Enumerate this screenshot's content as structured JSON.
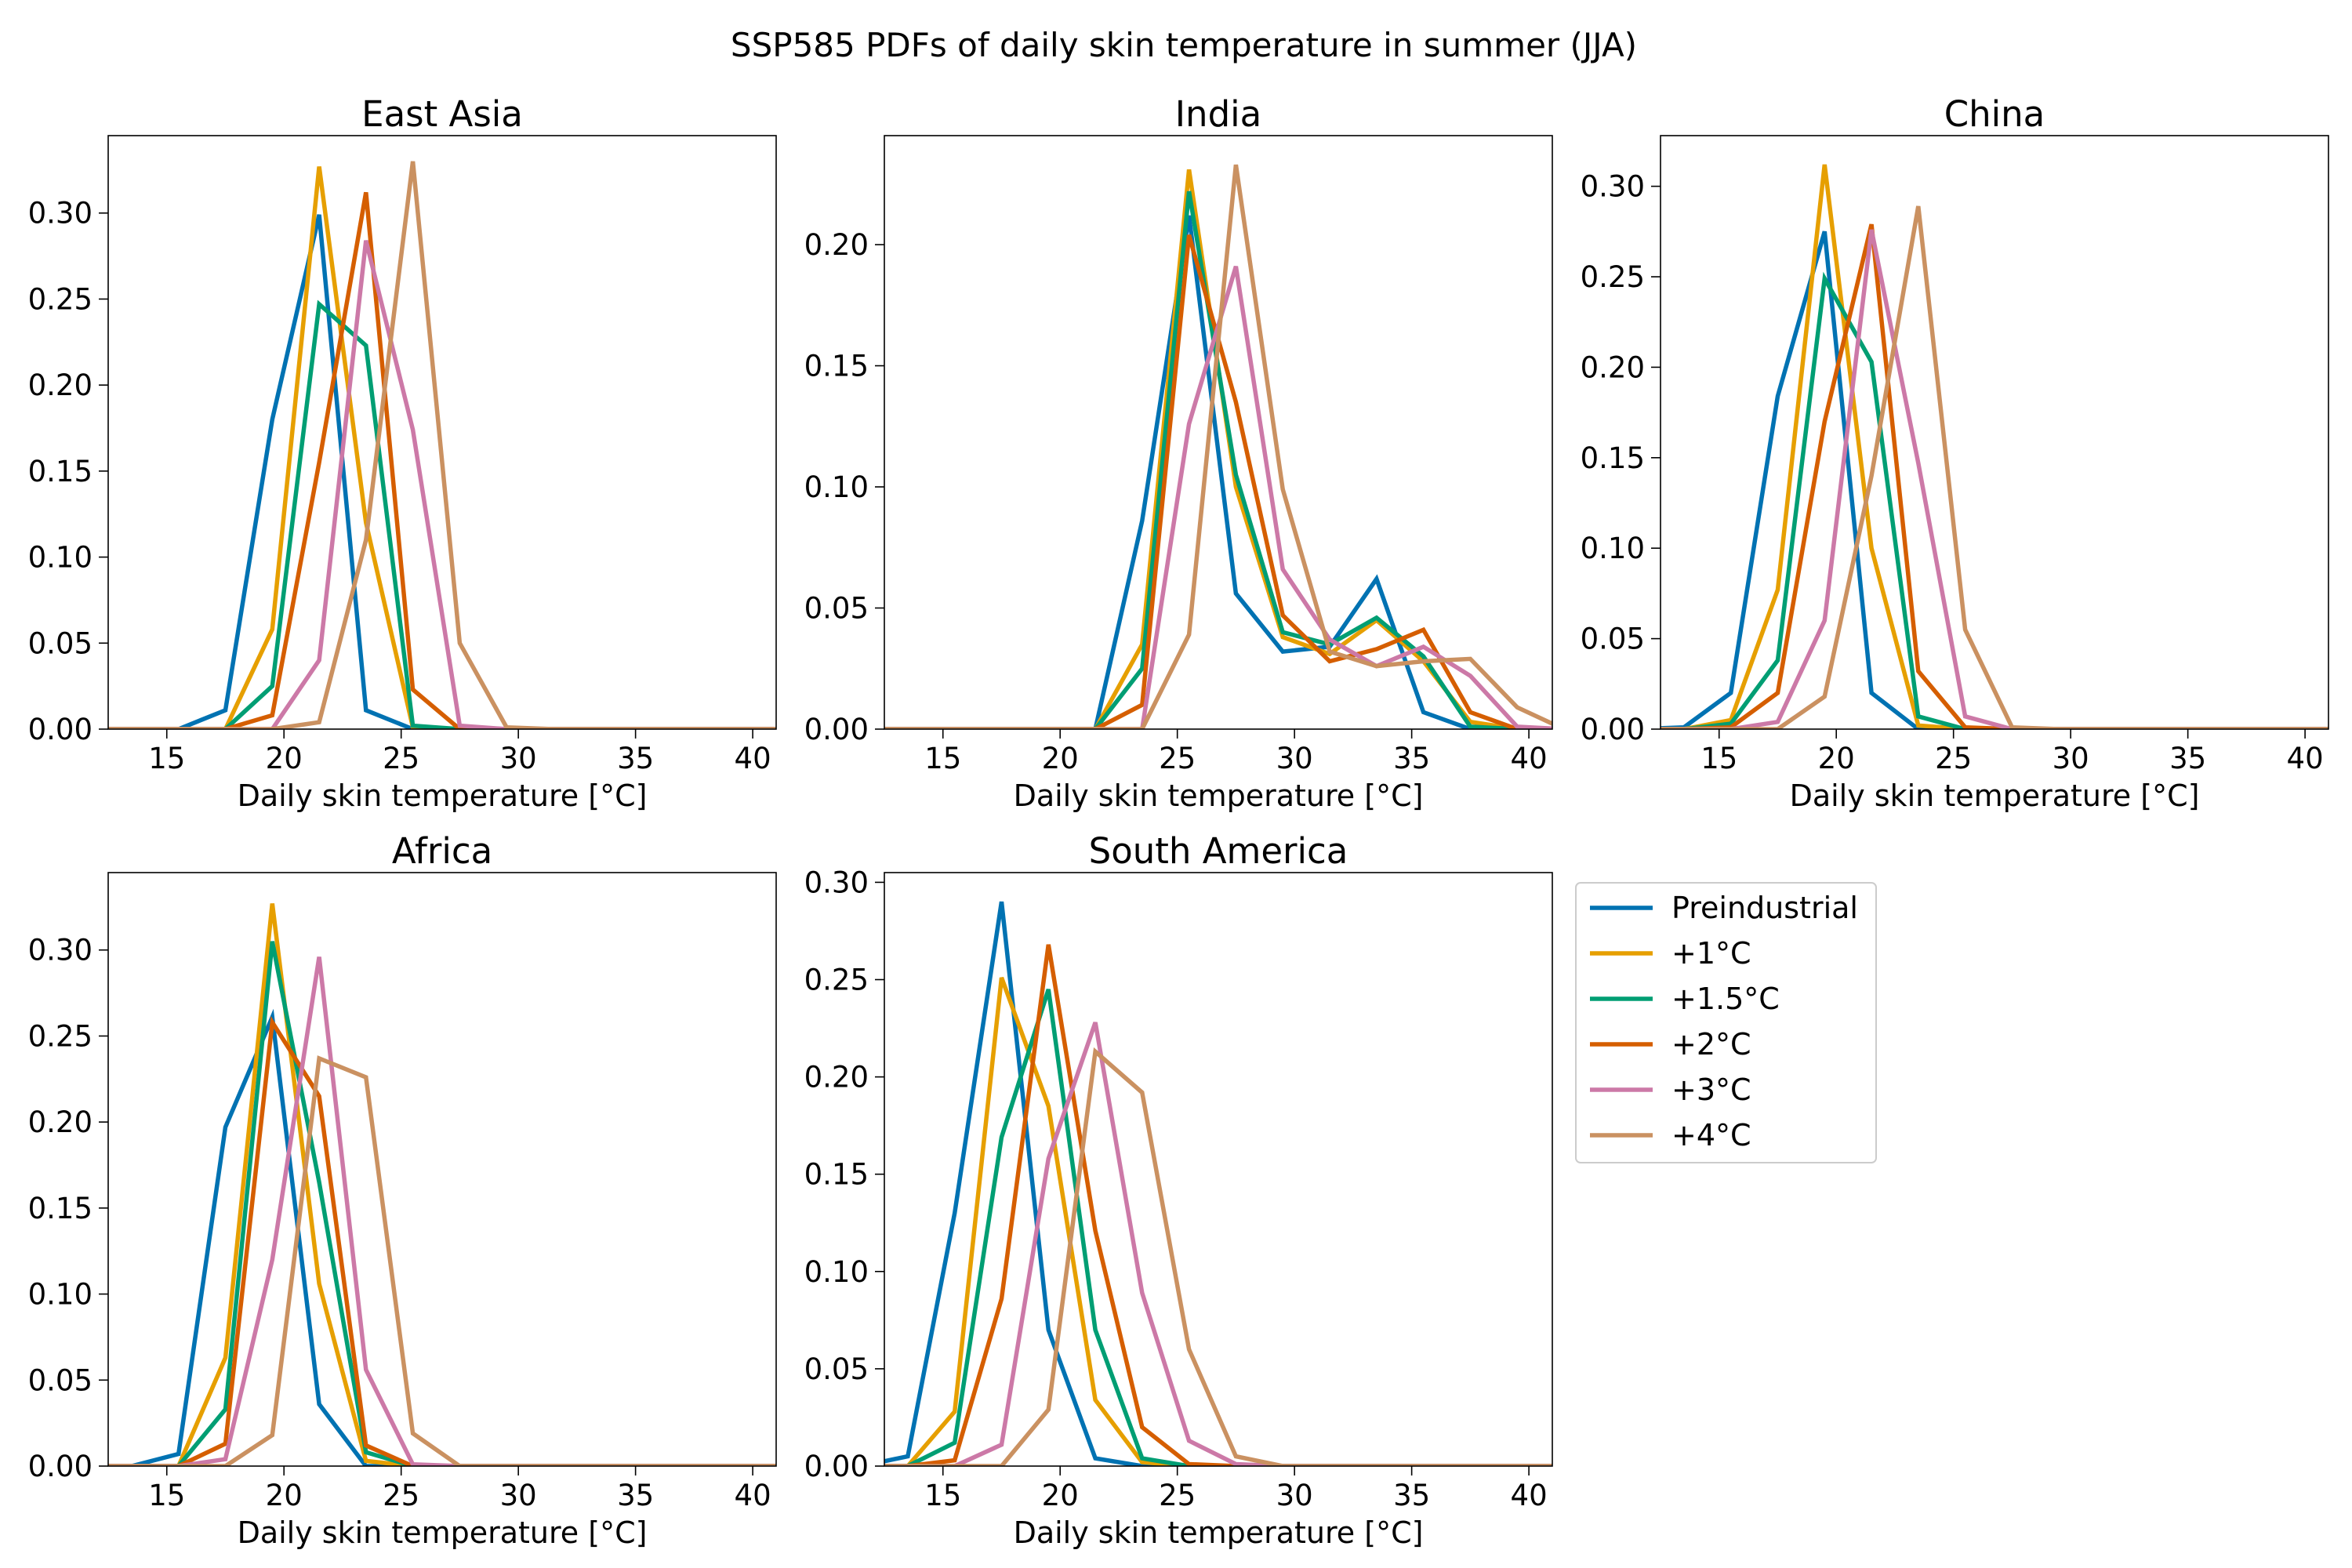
{
  "figure_title": "SSP585 PDFs of daily skin temperature in summer (JJA)",
  "series_names": [
    "Preindustrial",
    "+1°C",
    "+1.5°C",
    "+2°C",
    "+3°C",
    "+4°C"
  ],
  "colors": [
    "#0072b2",
    "#e69f00",
    "#009e73",
    "#d55e00",
    "#cc79a7",
    "#ca9161"
  ],
  "chart_data": [
    {
      "type": "line",
      "title": "East Asia",
      "xlabel": "Daily skin temperature [°C]",
      "ylabel": "",
      "xlim": [
        12.5,
        41
      ],
      "ylim": [
        0,
        0.345
      ],
      "xticks": [
        15,
        20,
        25,
        30,
        35,
        40
      ],
      "yticks": [
        0,
        0.05,
        0.1,
        0.15,
        0.2,
        0.25,
        0.3
      ],
      "ytick_labels": [
        "0.00",
        "0.05",
        "0.10",
        "0.15",
        "0.20",
        "0.25",
        "0.30"
      ],
      "x": [
        11.5,
        13.5,
        15.5,
        17.5,
        19.5,
        21.5,
        23.5,
        25.5,
        27.5,
        29.5,
        31.5,
        33.5,
        35.5,
        37.5,
        39.5,
        41.5
      ],
      "series": [
        {
          "name": "Preindustrial",
          "values": [
            0,
            0,
            0,
            0.011,
            0.18,
            0.299,
            0.011,
            0,
            0,
            0,
            0,
            0,
            0,
            0,
            0,
            0
          ]
        },
        {
          "name": "+1°C",
          "values": [
            0,
            0,
            0,
            0,
            0.058,
            0.327,
            0.12,
            0.001,
            0,
            0,
            0,
            0,
            0,
            0,
            0,
            0
          ]
        },
        {
          "name": "+1.5°C",
          "values": [
            0,
            0,
            0,
            0,
            0.025,
            0.247,
            0.223,
            0.002,
            0,
            0,
            0,
            0,
            0,
            0,
            0,
            0
          ]
        },
        {
          "name": "+2°C",
          "values": [
            0,
            0,
            0,
            0,
            0.008,
            0.155,
            0.312,
            0.023,
            0,
            0,
            0,
            0,
            0,
            0,
            0,
            0
          ]
        },
        {
          "name": "+3°C",
          "values": [
            0,
            0,
            0,
            0,
            0,
            0.04,
            0.284,
            0.174,
            0.002,
            0,
            0,
            0,
            0,
            0,
            0,
            0
          ]
        },
        {
          "name": "+4°C",
          "values": [
            0,
            0,
            0,
            0,
            0,
            0.004,
            0.11,
            0.33,
            0.05,
            0.001,
            0,
            0,
            0,
            0,
            0,
            0
          ]
        }
      ]
    },
    {
      "type": "line",
      "title": "India",
      "xlabel": "Daily skin temperature [°C]",
      "ylabel": "",
      "xlim": [
        12.5,
        41
      ],
      "ylim": [
        0,
        0.245
      ],
      "xticks": [
        15,
        20,
        25,
        30,
        35,
        40
      ],
      "yticks": [
        0,
        0.05,
        0.1,
        0.15,
        0.2
      ],
      "ytick_labels": [
        "0.00",
        "0.05",
        "0.10",
        "0.15",
        "0.20"
      ],
      "x": [
        11.5,
        13.5,
        15.5,
        17.5,
        19.5,
        21.5,
        23.5,
        25.5,
        27.5,
        29.5,
        31.5,
        33.5,
        35.5,
        37.5,
        39.5,
        41.5
      ],
      "series": [
        {
          "name": "Preindustrial",
          "values": [
            0,
            0,
            0,
            0,
            0,
            0,
            0.086,
            0.212,
            0.056,
            0.032,
            0.034,
            0.062,
            0.007,
            0,
            0,
            0
          ]
        },
        {
          "name": "+1°C",
          "values": [
            0,
            0,
            0,
            0,
            0,
            0,
            0.035,
            0.231,
            0.1,
            0.038,
            0.031,
            0.045,
            0.028,
            0.003,
            0,
            0
          ]
        },
        {
          "name": "+1.5°C",
          "values": [
            0,
            0,
            0,
            0,
            0,
            0,
            0.025,
            0.222,
            0.105,
            0.04,
            0.035,
            0.046,
            0.03,
            0.001,
            0,
            0
          ]
        },
        {
          "name": "+2°C",
          "values": [
            0,
            0,
            0,
            0,
            0,
            0,
            0.01,
            0.204,
            0.135,
            0.047,
            0.028,
            0.033,
            0.041,
            0.007,
            0,
            0
          ]
        },
        {
          "name": "+3°C",
          "values": [
            0,
            0,
            0,
            0,
            0,
            0,
            0,
            0.126,
            0.191,
            0.066,
            0.037,
            0.026,
            0.034,
            0.022,
            0.001,
            0
          ]
        },
        {
          "name": "+4°C",
          "values": [
            0,
            0,
            0,
            0,
            0,
            0,
            0,
            0.039,
            0.233,
            0.099,
            0.032,
            0.026,
            0.028,
            0.029,
            0.009,
            0
          ]
        }
      ]
    },
    {
      "type": "line",
      "title": "China",
      "xlabel": "Daily skin temperature [°C]",
      "ylabel": "",
      "xlim": [
        12.5,
        41
      ],
      "ylim": [
        0,
        0.328
      ],
      "xticks": [
        15,
        20,
        25,
        30,
        35,
        40
      ],
      "yticks": [
        0,
        0.05,
        0.1,
        0.15,
        0.2,
        0.25,
        0.3
      ],
      "ytick_labels": [
        "0.00",
        "0.05",
        "0.10",
        "0.15",
        "0.20",
        "0.25",
        "0.30"
      ],
      "x": [
        11.5,
        13.5,
        15.5,
        17.5,
        19.5,
        21.5,
        23.5,
        25.5,
        27.5,
        29.5,
        31.5,
        33.5,
        35.5,
        37.5,
        39.5,
        41.5
      ],
      "series": [
        {
          "name": "Preindustrial",
          "values": [
            0,
            0.001,
            0.02,
            0.184,
            0.275,
            0.02,
            0,
            0,
            0,
            0,
            0,
            0,
            0,
            0,
            0,
            0
          ]
        },
        {
          "name": "+1°C",
          "values": [
            0,
            0,
            0.005,
            0.077,
            0.312,
            0.1,
            0.002,
            0,
            0,
            0,
            0,
            0,
            0,
            0,
            0,
            0
          ]
        },
        {
          "name": "+1.5°C",
          "values": [
            0,
            0,
            0.003,
            0.038,
            0.249,
            0.203,
            0.007,
            0,
            0,
            0,
            0,
            0,
            0,
            0,
            0,
            0
          ]
        },
        {
          "name": "+2°C",
          "values": [
            0,
            0,
            0.001,
            0.02,
            0.17,
            0.279,
            0.032,
            0.001,
            0,
            0,
            0,
            0,
            0,
            0,
            0,
            0
          ]
        },
        {
          "name": "+3°C",
          "values": [
            0,
            0,
            0,
            0.004,
            0.06,
            0.276,
            0.147,
            0.007,
            0,
            0,
            0,
            0,
            0,
            0,
            0,
            0
          ]
        },
        {
          "name": "+4°C",
          "values": [
            0,
            0,
            0,
            0,
            0.018,
            0.14,
            0.289,
            0.055,
            0.001,
            0,
            0,
            0,
            0,
            0,
            0,
            0
          ]
        }
      ]
    },
    {
      "type": "line",
      "title": "Africa",
      "xlabel": "Daily skin temperature [°C]",
      "ylabel": "",
      "xlim": [
        12.5,
        41
      ],
      "ylim": [
        0,
        0.345
      ],
      "xticks": [
        15,
        20,
        25,
        30,
        35,
        40
      ],
      "yticks": [
        0,
        0.05,
        0.1,
        0.15,
        0.2,
        0.25,
        0.3
      ],
      "ytick_labels": [
        "0.00",
        "0.05",
        "0.10",
        "0.15",
        "0.20",
        "0.25",
        "0.30"
      ],
      "x": [
        11.5,
        13.5,
        15.5,
        17.5,
        19.5,
        21.5,
        23.5,
        25.5,
        27.5,
        29.5,
        31.5,
        33.5,
        35.5,
        37.5,
        39.5,
        41.5
      ],
      "series": [
        {
          "name": "Preindustrial",
          "values": [
            0,
            0,
            0.007,
            0.197,
            0.261,
            0.036,
            0,
            0,
            0,
            0,
            0,
            0,
            0,
            0,
            0,
            0
          ]
        },
        {
          "name": "+1°C",
          "values": [
            0,
            0,
            0,
            0.063,
            0.327,
            0.106,
            0.003,
            0,
            0,
            0,
            0,
            0,
            0,
            0,
            0,
            0
          ]
        },
        {
          "name": "+1.5°C",
          "values": [
            0,
            0,
            0,
            0.033,
            0.305,
            0.165,
            0.008,
            0,
            0,
            0,
            0,
            0,
            0,
            0,
            0,
            0
          ]
        },
        {
          "name": "+2°C",
          "values": [
            0,
            0,
            0,
            0.013,
            0.258,
            0.215,
            0.012,
            0,
            0,
            0,
            0,
            0,
            0,
            0,
            0,
            0
          ]
        },
        {
          "name": "+3°C",
          "values": [
            0,
            0,
            0,
            0.004,
            0.12,
            0.296,
            0.056,
            0.001,
            0,
            0,
            0,
            0,
            0,
            0,
            0,
            0
          ]
        },
        {
          "name": "+4°C",
          "values": [
            0,
            0,
            0,
            0,
            0.018,
            0.237,
            0.226,
            0.019,
            0,
            0,
            0,
            0,
            0,
            0,
            0,
            0
          ]
        }
      ]
    },
    {
      "type": "line",
      "title": "South America",
      "xlabel": "Daily skin temperature [°C]",
      "ylabel": "",
      "xlim": [
        12.5,
        41
      ],
      "ylim": [
        0,
        0.305
      ],
      "xticks": [
        15,
        20,
        25,
        30,
        35,
        40
      ],
      "yticks": [
        0,
        0.05,
        0.1,
        0.15,
        0.2,
        0.25,
        0.3
      ],
      "ytick_labels": [
        "0.00",
        "0.05",
        "0.10",
        "0.15",
        "0.20",
        "0.25",
        "0.30"
      ],
      "x": [
        11.5,
        13.5,
        15.5,
        17.5,
        19.5,
        21.5,
        23.5,
        25.5,
        27.5,
        29.5,
        31.5,
        33.5,
        35.5,
        37.5,
        39.5,
        41.5
      ],
      "series": [
        {
          "name": "Preindustrial",
          "values": [
            0,
            0.005,
            0.13,
            0.29,
            0.07,
            0.004,
            0,
            0,
            0,
            0,
            0,
            0,
            0,
            0,
            0,
            0
          ]
        },
        {
          "name": "+1°C",
          "values": [
            0,
            0,
            0.028,
            0.251,
            0.185,
            0.034,
            0.002,
            0,
            0,
            0,
            0,
            0,
            0,
            0,
            0,
            0
          ]
        },
        {
          "name": "+1.5°C",
          "values": [
            0,
            0,
            0.012,
            0.169,
            0.245,
            0.07,
            0.004,
            0,
            0,
            0,
            0,
            0,
            0,
            0,
            0,
            0
          ]
        },
        {
          "name": "+2°C",
          "values": [
            0,
            0,
            0.003,
            0.086,
            0.268,
            0.121,
            0.02,
            0.001,
            0,
            0,
            0,
            0,
            0,
            0,
            0,
            0
          ]
        },
        {
          "name": "+3°C",
          "values": [
            0,
            0,
            0,
            0.011,
            0.158,
            0.228,
            0.089,
            0.013,
            0.001,
            0,
            0,
            0,
            0,
            0,
            0,
            0
          ]
        },
        {
          "name": "+4°C",
          "values": [
            0,
            0,
            0,
            0,
            0.029,
            0.213,
            0.192,
            0.06,
            0.005,
            0,
            0,
            0,
            0,
            0,
            0,
            0
          ]
        }
      ]
    }
  ]
}
